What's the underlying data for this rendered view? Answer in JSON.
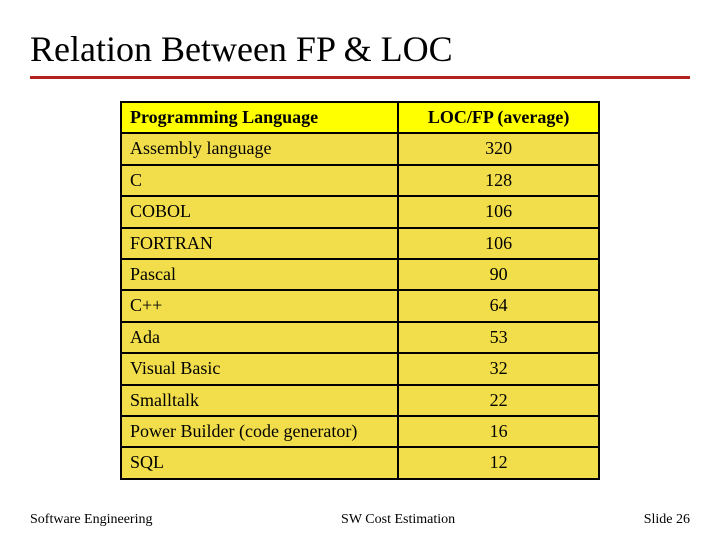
{
  "title": "Relation Between FP & LOC",
  "table": {
    "header_bg": "#ffff00",
    "row_bg": "#f2de4a",
    "border_color": "#000000",
    "columns": [
      {
        "label": "Programming Language",
        "align": "left"
      },
      {
        "label": "LOC/FP    (average)",
        "align": "center"
      }
    ],
    "rows": [
      {
        "lang": "Assembly language",
        "value": "320"
      },
      {
        "lang": "C",
        "value": "128"
      },
      {
        "lang": "COBOL",
        "value": "106"
      },
      {
        "lang": "FORTRAN",
        "value": "106"
      },
      {
        "lang": "Pascal",
        "value": "90"
      },
      {
        "lang": "C++",
        "value": "64"
      },
      {
        "lang": "Ada",
        "value": "53"
      },
      {
        "lang": "Visual Basic",
        "value": "32"
      },
      {
        "lang": "Smalltalk",
        "value": "22"
      },
      {
        "lang": "Power Builder (code generator)",
        "value": "16"
      },
      {
        "lang": "SQL",
        "value": "12"
      }
    ]
  },
  "footer": {
    "left": "Software Engineering",
    "center": "SW Cost Estimation",
    "right": "Slide 26"
  },
  "style": {
    "title_color": "#000000",
    "rule_color": "#b22222",
    "background": "#ffffff",
    "font_family": "Times New Roman"
  }
}
